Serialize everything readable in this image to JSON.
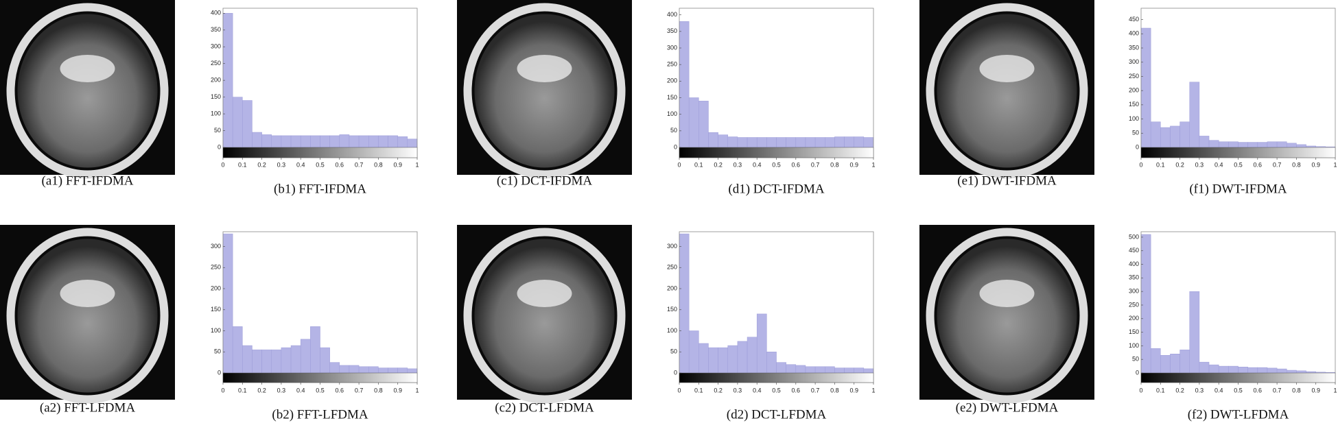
{
  "images": [
    {
      "caption": "(a1) FFT-IFDMA"
    },
    {
      "caption": "(c1) DCT-IFDMA"
    },
    {
      "caption": "(e1) DWT-IFDMA"
    },
    {
      "caption": "(a2) FFT-LFDMA"
    },
    {
      "caption": "(c2) DCT-LFDMA"
    },
    {
      "caption": "(e2) DWT-LFDMA"
    }
  ],
  "chart_data": [
    {
      "type": "histogram",
      "title": "(b1) FFT-IFDMA",
      "color": "#b4b4e6",
      "bins": [
        0,
        0.05,
        0.1,
        0.15,
        0.2,
        0.25,
        0.3,
        0.35,
        0.4,
        0.45,
        0.5,
        0.55,
        0.6,
        0.65,
        0.7,
        0.75,
        0.8,
        0.85,
        0.9,
        0.95,
        1
      ],
      "values": [
        400,
        150,
        140,
        45,
        38,
        35,
        35,
        35,
        35,
        35,
        35,
        35,
        38,
        35,
        35,
        35,
        35,
        35,
        32,
        25
      ],
      "xlim": [
        0,
        1
      ],
      "xticks": [
        0,
        0.1,
        0.2,
        0.3,
        0.4,
        0.5,
        0.6,
        0.7,
        0.8,
        0.9,
        1
      ],
      "ylim": [
        0,
        415
      ],
      "yticks": [
        0,
        50,
        100,
        150,
        200,
        250,
        300,
        350,
        400
      ]
    },
    {
      "type": "histogram",
      "title": "(d1) DCT-IFDMA",
      "color": "#b4b4e6",
      "bins": [
        0,
        0.05,
        0.1,
        0.15,
        0.2,
        0.25,
        0.3,
        0.35,
        0.4,
        0.45,
        0.5,
        0.55,
        0.6,
        0.65,
        0.7,
        0.75,
        0.8,
        0.85,
        0.9,
        0.95,
        1
      ],
      "values": [
        380,
        150,
        140,
        45,
        38,
        32,
        30,
        30,
        30,
        30,
        30,
        30,
        30,
        30,
        30,
        30,
        32,
        32,
        32,
        30
      ],
      "xlim": [
        0,
        1
      ],
      "xticks": [
        0,
        0.1,
        0.2,
        0.3,
        0.4,
        0.5,
        0.6,
        0.7,
        0.8,
        0.9,
        1
      ],
      "ylim": [
        0,
        420
      ],
      "yticks": [
        0,
        50,
        100,
        150,
        200,
        250,
        300,
        350,
        400
      ]
    },
    {
      "type": "histogram",
      "title": "(f1) DWT-IFDMA",
      "color": "#b4b4e6",
      "bins": [
        0,
        0.05,
        0.1,
        0.15,
        0.2,
        0.25,
        0.3,
        0.35,
        0.4,
        0.45,
        0.5,
        0.55,
        0.6,
        0.65,
        0.7,
        0.75,
        0.8,
        0.85,
        0.9,
        0.95,
        1
      ],
      "values": [
        420,
        90,
        70,
        75,
        90,
        230,
        40,
        25,
        20,
        20,
        18,
        18,
        18,
        20,
        20,
        15,
        10,
        5,
        3,
        2
      ],
      "xlim": [
        0,
        1
      ],
      "xticks": [
        0,
        0.1,
        0.2,
        0.3,
        0.4,
        0.5,
        0.6,
        0.7,
        0.8,
        0.9,
        1
      ],
      "ylim": [
        0,
        490
      ],
      "yticks": [
        0,
        50,
        100,
        150,
        200,
        250,
        300,
        350,
        400,
        450
      ]
    },
    {
      "type": "histogram",
      "title": "(b2) FFT-LFDMA",
      "color": "#b4b4e6",
      "bins": [
        0,
        0.05,
        0.1,
        0.15,
        0.2,
        0.25,
        0.3,
        0.35,
        0.4,
        0.45,
        0.5,
        0.55,
        0.6,
        0.65,
        0.7,
        0.75,
        0.8,
        0.85,
        0.9,
        0.95,
        1
      ],
      "values": [
        330,
        110,
        65,
        55,
        55,
        55,
        60,
        65,
        80,
        110,
        60,
        25,
        18,
        18,
        15,
        15,
        12,
        12,
        12,
        10
      ],
      "xlim": [
        0,
        1
      ],
      "xticks": [
        0,
        0.1,
        0.2,
        0.3,
        0.4,
        0.5,
        0.6,
        0.7,
        0.8,
        0.9,
        1
      ],
      "ylim": [
        0,
        335
      ],
      "yticks": [
        0,
        50,
        100,
        150,
        200,
        250,
        300
      ]
    },
    {
      "type": "histogram",
      "title": "(d2) DCT-LFDMA",
      "color": "#b4b4e6",
      "bins": [
        0,
        0.05,
        0.1,
        0.15,
        0.2,
        0.25,
        0.3,
        0.35,
        0.4,
        0.45,
        0.5,
        0.55,
        0.6,
        0.65,
        0.7,
        0.75,
        0.8,
        0.85,
        0.9,
        0.95,
        1
      ],
      "values": [
        330,
        100,
        70,
        60,
        60,
        65,
        75,
        85,
        140,
        50,
        25,
        20,
        18,
        15,
        15,
        15,
        12,
        12,
        12,
        10
      ],
      "xlim": [
        0,
        1
      ],
      "xticks": [
        0,
        0.1,
        0.2,
        0.3,
        0.4,
        0.5,
        0.6,
        0.7,
        0.8,
        0.9,
        1
      ],
      "ylim": [
        0,
        335
      ],
      "yticks": [
        0,
        50,
        100,
        150,
        200,
        250,
        300
      ]
    },
    {
      "type": "histogram",
      "title": "(f2) DWT-LFDMA",
      "color": "#b4b4e6",
      "bins": [
        0,
        0.05,
        0.1,
        0.15,
        0.2,
        0.25,
        0.3,
        0.35,
        0.4,
        0.45,
        0.5,
        0.55,
        0.6,
        0.65,
        0.7,
        0.75,
        0.8,
        0.85,
        0.9,
        0.95,
        1
      ],
      "values": [
        510,
        90,
        65,
        70,
        85,
        300,
        40,
        30,
        25,
        25,
        22,
        20,
        20,
        18,
        15,
        10,
        8,
        5,
        3,
        2
      ],
      "xlim": [
        0,
        1
      ],
      "xticks": [
        0,
        0.1,
        0.2,
        0.3,
        0.4,
        0.5,
        0.6,
        0.7,
        0.8,
        0.9,
        1
      ],
      "ylim": [
        0,
        520
      ],
      "yticks": [
        0,
        50,
        100,
        150,
        200,
        250,
        300,
        350,
        400,
        450,
        500
      ]
    }
  ]
}
